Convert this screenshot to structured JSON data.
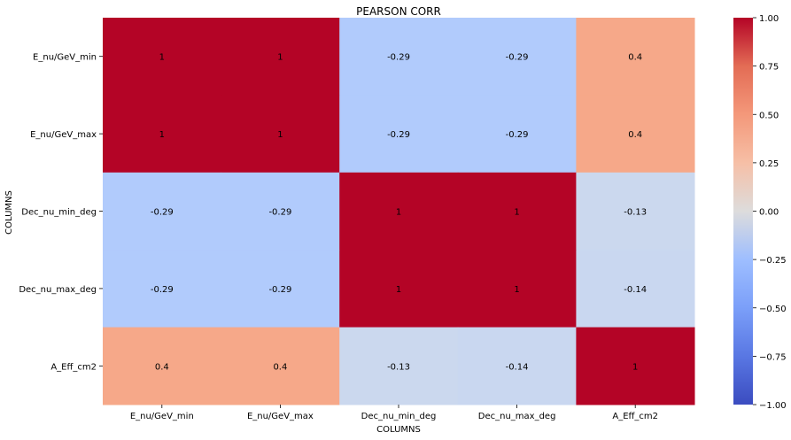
{
  "chart_data": {
    "type": "heatmap",
    "title": "PEARSON CORR",
    "xlabel": "COLUMNS",
    "ylabel": "COLUMNS",
    "x_categories": [
      "E_nu/GeV_min",
      "E_nu/GeV_max",
      "Dec_nu_min_deg",
      "Dec_nu_max_deg",
      "A_Eff_cm2"
    ],
    "y_categories": [
      "E_nu/GeV_min",
      "E_nu/GeV_max",
      "Dec_nu_min_deg",
      "Dec_nu_max_deg",
      "A_Eff_cm2"
    ],
    "values": [
      [
        1,
        1,
        -0.29,
        -0.29,
        0.4
      ],
      [
        1,
        1,
        -0.29,
        -0.29,
        0.4
      ],
      [
        -0.29,
        -0.29,
        1,
        1,
        -0.13
      ],
      [
        -0.29,
        -0.29,
        1,
        1,
        -0.14
      ],
      [
        0.4,
        0.4,
        -0.13,
        -0.14,
        1
      ]
    ],
    "annotations": [
      [
        "1",
        "1",
        "-0.29",
        "-0.29",
        "0.4"
      ],
      [
        "1",
        "1",
        "-0.29",
        "-0.29",
        "0.4"
      ],
      [
        "-0.29",
        "-0.29",
        "1",
        "1",
        "-0.13"
      ],
      [
        "-0.29",
        "-0.29",
        "1",
        "1",
        "-0.14"
      ],
      [
        "0.4",
        "0.4",
        "-0.13",
        "-0.14",
        "1"
      ]
    ],
    "colormap": "coolwarm",
    "vmin": -1,
    "vmax": 1,
    "colorbar_ticks": [
      1.0,
      0.75,
      0.5,
      0.25,
      0.0,
      -0.25,
      -0.5,
      -0.75,
      -1.0
    ],
    "colorbar_tick_labels": [
      "1.00",
      "0.75",
      "0.50",
      "0.25",
      "0.00",
      "−0.25",
      "−0.50",
      "−0.75",
      "−1.00"
    ],
    "colors": {
      "1.00": "#b40426",
      "0.40": "#f6a889",
      "-0.13": "#cbd8ee",
      "-0.14": "#c9d7f0",
      "-0.29": "#b1cbfc"
    }
  }
}
